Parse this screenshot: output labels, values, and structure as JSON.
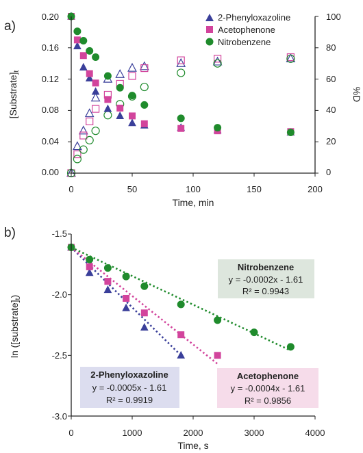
{
  "colors": {
    "phenyl": "#3a3f9a",
    "aceto": "#d2449c",
    "nitro": "#1f8b2c",
    "box_phenyl": "#dcddef",
    "box_aceto": "#f6dcea",
    "box_nitro": "#dde6dd"
  },
  "chart_data": [
    {
      "panel_label": "a)",
      "type": "scatter",
      "xlabel": "Time, min",
      "ylabel": "[Substrate]",
      "ylabel_sub": "t",
      "y2label": "%D",
      "xlim": [
        0,
        200
      ],
      "ylim": [
        0,
        0.2
      ],
      "y2lim": [
        0,
        100
      ],
      "x_ticks": [
        "0",
        "50",
        "100",
        "150",
        "200"
      ],
      "y_ticks": [
        "0.00",
        "0.04",
        "0.08",
        "0.12",
        "0.16",
        "0.20"
      ],
      "y2_ticks": [
        "0",
        "20",
        "40",
        "60",
        "80",
        "100"
      ],
      "legend_position": "top-right",
      "legend": [
        {
          "label": "2-Phenyloxazoline",
          "marker": "triangle",
          "color_key": "phenyl"
        },
        {
          "label": "Acetophenone",
          "marker": "square",
          "color_key": "aceto"
        },
        {
          "label": "Nitrobenzene",
          "marker": "circle",
          "color_key": "nitro"
        }
      ],
      "series": [
        {
          "name": "2-Phenyloxazoline",
          "axis": "left",
          "filled": true,
          "marker": "triangle",
          "color_key": "phenyl",
          "x": [
            0,
            5,
            10,
            15,
            20,
            30,
            40,
            50,
            60,
            90,
            120,
            180
          ],
          "y": [
            0.2,
            0.162,
            0.135,
            0.121,
            0.104,
            0.082,
            0.073,
            0.064,
            0.061,
            0.058,
            0.055,
            0.052
          ]
        },
        {
          "name": "Acetophenone",
          "axis": "left",
          "filled": true,
          "marker": "square",
          "color_key": "aceto",
          "x": [
            0,
            5,
            10,
            15,
            20,
            30,
            40,
            50,
            60,
            90,
            120,
            180
          ],
          "y": [
            0.2,
            0.17,
            0.15,
            0.127,
            0.115,
            0.094,
            0.083,
            0.073,
            0.063,
            0.057,
            0.054,
            0.053
          ]
        },
        {
          "name": "Nitrobenzene",
          "axis": "left",
          "filled": true,
          "marker": "circle",
          "color_key": "nitro",
          "x": [
            0,
            5,
            10,
            15,
            20,
            30,
            40,
            50,
            60,
            90,
            120,
            180
          ],
          "y": [
            0.2,
            0.181,
            0.169,
            0.156,
            0.148,
            0.124,
            0.109,
            0.099,
            0.087,
            0.07,
            0.058,
            0.052
          ]
        },
        {
          "name": "2-Phenyloxazoline",
          "axis": "right",
          "filled": false,
          "marker": "triangle",
          "color_key": "phenyl",
          "x": [
            0,
            5,
            10,
            15,
            20,
            30,
            40,
            50,
            60,
            90,
            120,
            180
          ],
          "y": [
            0,
            17,
            27,
            38,
            48,
            60,
            63,
            67,
            68,
            70,
            71,
            73
          ]
        },
        {
          "name": "Acetophenone",
          "axis": "right",
          "filled": false,
          "marker": "square",
          "color_key": "aceto",
          "x": [
            0,
            5,
            10,
            15,
            20,
            30,
            40,
            50,
            60,
            90,
            120,
            180
          ],
          "y": [
            0,
            12,
            24,
            33,
            41,
            50,
            57,
            62,
            67,
            72,
            73,
            74
          ]
        },
        {
          "name": "Nitrobenzene",
          "axis": "right",
          "filled": false,
          "marker": "circle",
          "color_key": "nitro",
          "x": [
            0,
            5,
            10,
            15,
            20,
            30,
            40,
            50,
            60,
            90,
            120,
            180
          ],
          "y": [
            0,
            9,
            15,
            21,
            27,
            37,
            44,
            49,
            55,
            64,
            70,
            73
          ]
        }
      ]
    },
    {
      "panel_label": "b)",
      "type": "scatter",
      "xlabel": "Time, s",
      "ylabel": "ln ([substrate]",
      "ylabel_sub": "t",
      "ylabel_tail": ")",
      "xlim": [
        0,
        4000
      ],
      "ylim": [
        -3.0,
        -1.5
      ],
      "x_ticks": [
        "0",
        "1000",
        "2000",
        "3000",
        "4000"
      ],
      "y_ticks": [
        "-3.0",
        "-2.5",
        "-2.0",
        "-1.5"
      ],
      "series": [
        {
          "name": "2-Phenyloxazoline",
          "marker": "triangle",
          "color_key": "phenyl",
          "x": [
            0,
            300,
            600,
            900,
            1200,
            1800
          ],
          "y": [
            -1.61,
            -1.82,
            -1.96,
            -2.11,
            -2.27,
            -2.5
          ]
        },
        {
          "name": "Acetophenone",
          "marker": "square",
          "color_key": "aceto",
          "x": [
            0,
            300,
            600,
            900,
            1200,
            1800,
            2400
          ],
          "y": [
            -1.61,
            -1.77,
            -1.89,
            -2.03,
            -2.15,
            -2.33,
            -2.5
          ]
        },
        {
          "name": "Nitrobenzene",
          "marker": "circle",
          "color_key": "nitro",
          "x": [
            0,
            300,
            600,
            900,
            1200,
            1800,
            2400,
            3000,
            3600
          ],
          "y": [
            -1.61,
            -1.71,
            -1.78,
            -1.85,
            -1.93,
            -2.08,
            -2.21,
            -2.31,
            -2.43
          ]
        }
      ],
      "fits": [
        {
          "series": "2-Phenyloxazoline",
          "color_key": "phenyl",
          "x_range": [
            0,
            1800
          ],
          "y_range": [
            -1.61,
            -2.5
          ]
        },
        {
          "series": "Acetophenone",
          "color_key": "aceto",
          "x_range": [
            0,
            2400
          ],
          "y_range": [
            -1.61,
            -2.57
          ]
        },
        {
          "series": "Nitrobenzene",
          "color_key": "nitro",
          "x_range": [
            0,
            3600
          ],
          "y_range": [
            -1.61,
            -2.46
          ]
        }
      ],
      "annotations": [
        {
          "key": "nitro",
          "title": "Nitrobenzene",
          "equation": "y = -0.0002x - 1.61",
          "r2": "R² = 0.9943"
        },
        {
          "key": "phenyl",
          "title": "2-Phenyloxazoline",
          "equation": "y = -0.0005x - 1.61",
          "r2": "R² = 0.9919"
        },
        {
          "key": "aceto",
          "title": "Acetophenone",
          "equation": "y = -0.0004x - 1.61",
          "r2": "R² = 0.9856"
        }
      ]
    }
  ]
}
